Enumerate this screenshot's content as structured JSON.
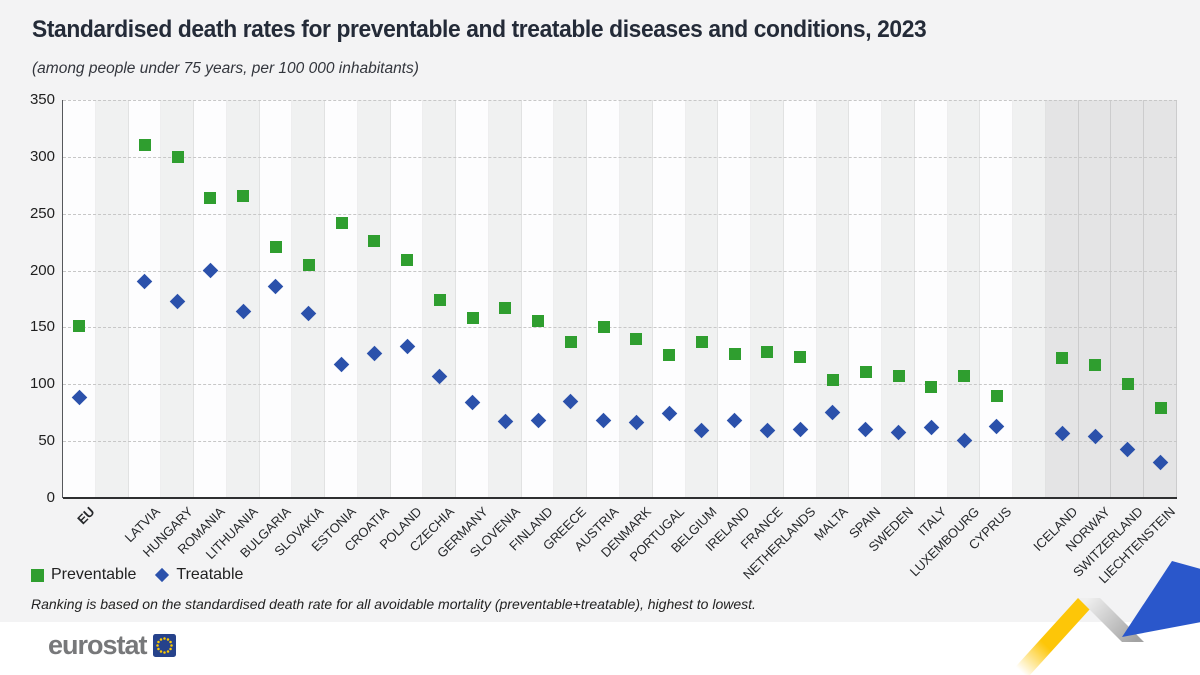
{
  "header": {
    "title": "Standardised death rates for preventable and treatable diseases and conditions, 2023",
    "subtitle": "(among people under 75 years, per 100 000 inhabitants)"
  },
  "footnote": "Ranking is based on the standardised death rate for all avoidable mortality (preventable+treatable), highest to lowest.",
  "footer": {
    "logo_text": "eurostat"
  },
  "colors": {
    "page_bg": "#f3f3f4",
    "band_white": "#fdfdfe",
    "band_light": "#f0f1f1",
    "band_efta": "#e4e4e5",
    "accent_green": "#2f9e2f",
    "accent_blue": "#2b51ab",
    "ribbon_yellow": "#fdc608",
    "ribbon_blue": "#2a57cb",
    "eu_flag_blue": "#26428b",
    "star_yellow": "#ffcc00",
    "logo_gray": "#77787a"
  },
  "chart_data": {
    "type": "scatter",
    "title": "Standardised death rates for preventable and treatable diseases and conditions, 2023",
    "subtitle": "(among people under 75 years, per 100 000 inhabitants)",
    "ylim": [
      0,
      350
    ],
    "yticks": [
      0,
      50,
      100,
      150,
      200,
      250,
      300,
      350
    ],
    "grid": "horizontal-dashed",
    "legend_position": "bottom-left",
    "series": [
      {
        "name": "Preventable",
        "marker": "square",
        "color": "#2f9e2f"
      },
      {
        "name": "Treatable",
        "marker": "diamond",
        "color": "#2b51ab"
      }
    ],
    "points": [
      {
        "label": "EU",
        "group": "eu-aggregate",
        "preventable": 151,
        "treatable": 88
      },
      {
        "label": "",
        "group": "spacer"
      },
      {
        "label": "LATVIA",
        "group": "eu",
        "preventable": 310,
        "treatable": 190
      },
      {
        "label": "HUNGARY",
        "group": "eu",
        "preventable": 300,
        "treatable": 173
      },
      {
        "label": "ROMANIA",
        "group": "eu",
        "preventable": 264,
        "treatable": 200
      },
      {
        "label": "LITHUANIA",
        "group": "eu",
        "preventable": 266,
        "treatable": 164
      },
      {
        "label": "BULGARIA",
        "group": "eu",
        "preventable": 221,
        "treatable": 186
      },
      {
        "label": "SLOVAKIA",
        "group": "eu",
        "preventable": 205,
        "treatable": 162
      },
      {
        "label": "ESTONIA",
        "group": "eu",
        "preventable": 242,
        "treatable": 117
      },
      {
        "label": "CROATIA",
        "group": "eu",
        "preventable": 226,
        "treatable": 127
      },
      {
        "label": "POLAND",
        "group": "eu",
        "preventable": 209,
        "treatable": 133
      },
      {
        "label": "CZECHIA",
        "group": "eu",
        "preventable": 174,
        "treatable": 107
      },
      {
        "label": "GERMANY",
        "group": "eu",
        "preventable": 158,
        "treatable": 84
      },
      {
        "label": "SLOVENIA",
        "group": "eu",
        "preventable": 167,
        "treatable": 67
      },
      {
        "label": "FINLAND",
        "group": "eu",
        "preventable": 156,
        "treatable": 68
      },
      {
        "label": "GREECE",
        "group": "eu",
        "preventable": 137,
        "treatable": 85
      },
      {
        "label": "AUSTRIA",
        "group": "eu",
        "preventable": 150,
        "treatable": 68
      },
      {
        "label": "DENMARK",
        "group": "eu",
        "preventable": 140,
        "treatable": 66
      },
      {
        "label": "PORTUGAL",
        "group": "eu",
        "preventable": 126,
        "treatable": 74
      },
      {
        "label": "BELGIUM",
        "group": "eu",
        "preventable": 137,
        "treatable": 59
      },
      {
        "label": "IRELAND",
        "group": "eu",
        "preventable": 127,
        "treatable": 68
      },
      {
        "label": "FRANCE",
        "group": "eu",
        "preventable": 128,
        "treatable": 59
      },
      {
        "label": "NETHERLANDS",
        "group": "eu",
        "preventable": 124,
        "treatable": 60
      },
      {
        "label": "MALTA",
        "group": "eu",
        "preventable": 104,
        "treatable": 75
      },
      {
        "label": "SPAIN",
        "group": "eu",
        "preventable": 111,
        "treatable": 60
      },
      {
        "label": "SWEDEN",
        "group": "eu",
        "preventable": 107,
        "treatable": 58
      },
      {
        "label": "ITALY",
        "group": "eu",
        "preventable": 98,
        "treatable": 62
      },
      {
        "label": "LUXEMBOURG",
        "group": "eu",
        "preventable": 107,
        "treatable": 51
      },
      {
        "label": "CYPRUS",
        "group": "eu",
        "preventable": 90,
        "treatable": 63
      },
      {
        "label": "",
        "group": "spacer"
      },
      {
        "label": "ICELAND",
        "group": "efta",
        "preventable": 123,
        "treatable": 57
      },
      {
        "label": "NORWAY",
        "group": "efta",
        "preventable": 117,
        "treatable": 54
      },
      {
        "label": "SWITZERLAND",
        "group": "efta",
        "preventable": 100,
        "treatable": 43
      },
      {
        "label": "LIECHTENSTEIN",
        "group": "efta",
        "preventable": 79,
        "treatable": 31
      }
    ]
  }
}
